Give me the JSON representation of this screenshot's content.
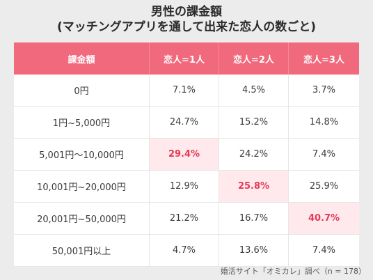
{
  "title": {
    "line1": "男性の課金額",
    "line2": "(マッチングアプリを通して出来た恋人の数ごと)"
  },
  "chart_data": {
    "type": "table",
    "columns": [
      "課金額",
      "恋人=1人",
      "恋人=2人",
      "恋人=3人"
    ],
    "rows": [
      {
        "label": "0円",
        "values": [
          "7.1%",
          "4.5%",
          "3.7%"
        ],
        "highlight": -1
      },
      {
        "label": "1円~5,000円",
        "values": [
          "24.7%",
          "15.2%",
          "14.8%"
        ],
        "highlight": -1
      },
      {
        "label": "5,001円～10,000円",
        "values": [
          "29.4%",
          "24.2%",
          "7.4%"
        ],
        "highlight": 0
      },
      {
        "label": "10,001円~20,000円",
        "values": [
          "12.9%",
          "25.8%",
          "25.9%"
        ],
        "highlight": 1
      },
      {
        "label": "20,001円~50,000円",
        "values": [
          "21.2%",
          "16.7%",
          "40.7%"
        ],
        "highlight": 2
      },
      {
        "label": "50,001円以上",
        "values": [
          "4.7%",
          "13.6%",
          "7.4%"
        ],
        "highlight": -1
      }
    ]
  },
  "source_note": "婚活サイト「オミカレ」調べ（n = 178）",
  "colors": {
    "header_bg": "#f0697d",
    "highlight_bg": "#ffe9ec",
    "highlight_text": "#e63a57",
    "page_bg": "#ececec"
  }
}
